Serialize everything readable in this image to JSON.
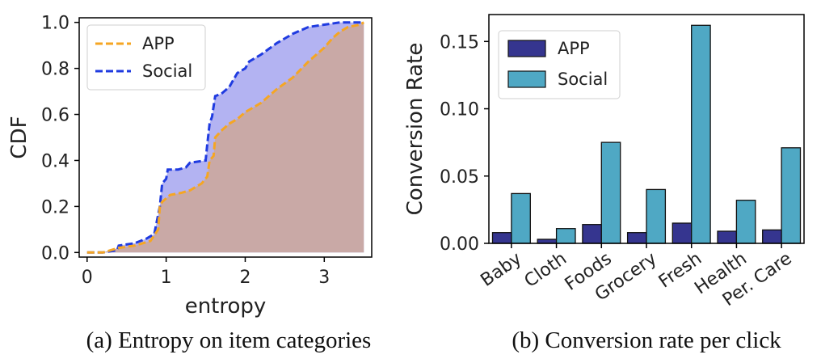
{
  "chart_data": [
    {
      "type": "area",
      "caption": "(a)  Entropy on item categories",
      "xlabel": "entropy",
      "ylabel": "CDF",
      "xlim": [
        -0.1,
        3.6
      ],
      "ylim": [
        -0.02,
        1.02
      ],
      "xticks": [
        "0",
        "1",
        "2",
        "3"
      ],
      "yticks": [
        "0.0",
        "0.2",
        "0.4",
        "0.6",
        "0.8",
        "1.0"
      ],
      "grid": false,
      "legend_position": "top-left",
      "series": [
        {
          "name": "APP",
          "color": "#f5a623",
          "fill": "#c9a9a6",
          "points": [
            [
              0.0,
              0.0
            ],
            [
              0.2,
              0.0
            ],
            [
              0.4,
              0.02
            ],
            [
              0.6,
              0.03
            ],
            [
              0.8,
              0.05
            ],
            [
              0.9,
              0.1
            ],
            [
              0.92,
              0.2
            ],
            [
              0.95,
              0.22
            ],
            [
              1.05,
              0.25
            ],
            [
              1.2,
              0.26
            ],
            [
              1.3,
              0.27
            ],
            [
              1.45,
              0.3
            ],
            [
              1.52,
              0.33
            ],
            [
              1.55,
              0.4
            ],
            [
              1.6,
              0.42
            ],
            [
              1.62,
              0.5
            ],
            [
              1.7,
              0.53
            ],
            [
              1.8,
              0.56
            ],
            [
              1.9,
              0.58
            ],
            [
              2.0,
              0.61
            ],
            [
              2.2,
              0.65
            ],
            [
              2.4,
              0.71
            ],
            [
              2.6,
              0.76
            ],
            [
              2.8,
              0.83
            ],
            [
              3.0,
              0.89
            ],
            [
              3.1,
              0.93
            ],
            [
              3.2,
              0.96
            ],
            [
              3.3,
              0.98
            ],
            [
              3.45,
              0.99
            ],
            [
              3.5,
              1.0
            ]
          ]
        },
        {
          "name": "Social",
          "color": "#1f3be0",
          "fill": "#b3b3f2",
          "points": [
            [
              0.0,
              0.0
            ],
            [
              0.2,
              0.0
            ],
            [
              0.38,
              0.01
            ],
            [
              0.4,
              0.03
            ],
            [
              0.6,
              0.04
            ],
            [
              0.75,
              0.06
            ],
            [
              0.85,
              0.08
            ],
            [
              0.92,
              0.2
            ],
            [
              0.95,
              0.3
            ],
            [
              1.0,
              0.32
            ],
            [
              1.02,
              0.36
            ],
            [
              1.15,
              0.36
            ],
            [
              1.25,
              0.37
            ],
            [
              1.3,
              0.39
            ],
            [
              1.5,
              0.4
            ],
            [
              1.52,
              0.47
            ],
            [
              1.55,
              0.56
            ],
            [
              1.58,
              0.59
            ],
            [
              1.62,
              0.68
            ],
            [
              1.7,
              0.69
            ],
            [
              1.8,
              0.72
            ],
            [
              1.85,
              0.75
            ],
            [
              1.9,
              0.78
            ],
            [
              2.0,
              0.8
            ],
            [
              2.05,
              0.83
            ],
            [
              2.2,
              0.86
            ],
            [
              2.4,
              0.91
            ],
            [
              2.6,
              0.95
            ],
            [
              2.8,
              0.98
            ],
            [
              3.0,
              0.99
            ],
            [
              3.2,
              1.0
            ],
            [
              3.5,
              1.0
            ]
          ]
        }
      ]
    },
    {
      "type": "bar",
      "caption": "(b)  Conversion rate per click",
      "ylabel": "Conversion Rate",
      "categories": [
        "Baby",
        "Cloth",
        "Foods",
        "Grocery",
        "Fresh",
        "Health",
        "Per. Care"
      ],
      "ylim": [
        0,
        0.17
      ],
      "yticks": [
        "0.00",
        "0.05",
        "0.10",
        "0.15"
      ],
      "grid": false,
      "legend_position": "top-left",
      "series": [
        {
          "name": "APP",
          "color": "#35358f",
          "values": [
            0.008,
            0.003,
            0.014,
            0.008,
            0.015,
            0.009,
            0.01
          ]
        },
        {
          "name": "Social",
          "color": "#4fa8c4",
          "values": [
            0.037,
            0.011,
            0.075,
            0.04,
            0.162,
            0.032,
            0.071
          ]
        }
      ]
    }
  ]
}
